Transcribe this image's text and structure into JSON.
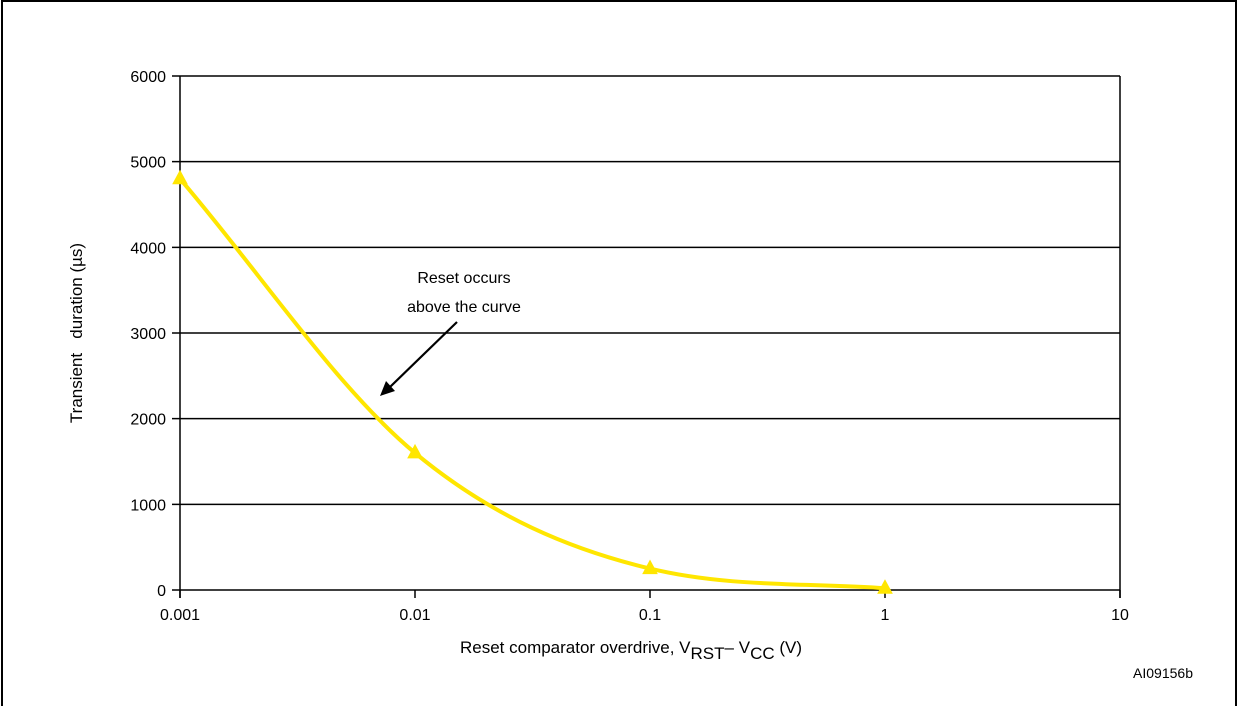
{
  "chart_data": {
    "type": "line",
    "x_scale": "log",
    "x": [
      0.001,
      0.01,
      0.1,
      1
    ],
    "series": [
      {
        "values": [
          4800,
          1600,
          250,
          20
        ],
        "color": "#FFE600",
        "marker": "triangle"
      }
    ],
    "xlim": [
      0.001,
      10
    ],
    "ylim": [
      0,
      6000
    ],
    "x_ticks": [
      "0.001",
      "0.01",
      "0.1",
      "1",
      "10"
    ],
    "y_ticks": [
      "0",
      "1000",
      "2000",
      "3000",
      "4000",
      "5000",
      "6000"
    ],
    "ylabel": "Transient   duration (µs)",
    "xlabel": {
      "prefix": "Reset comparator overdrive, V",
      "sub1": "RST",
      "mid": "– V",
      "sub2": "CC",
      "suffix": " (V)"
    },
    "annotation": {
      "line1": "Reset occurs",
      "line2": "above the curve"
    },
    "grid": "horizontal",
    "figure_id": "AI09156b"
  }
}
